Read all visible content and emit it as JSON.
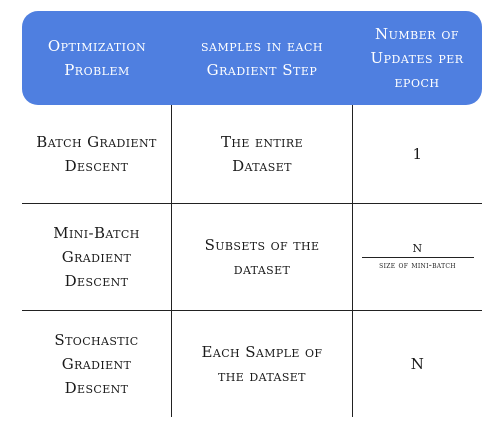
{
  "headers": [
    "Optimization\nProblem",
    "samples in each\nGradient Step",
    "Number of\nUpdates per\nepoch"
  ],
  "rows": [
    {
      "method": "Batch Gradient\nDescent",
      "samples": "The entire\nDataset",
      "updates": "1"
    },
    {
      "method": "Mini-Batch\nGradient\nDescent",
      "samples": "Subsets of the\ndataset",
      "updates_numerator": "N",
      "updates_denominator": "size of mini-batch"
    },
    {
      "method": "Stochastic\nGradient\nDescent",
      "samples": "Each Sample of\nthe dataset",
      "updates": "N"
    }
  ],
  "colors": {
    "header_bg": "#4f7fe0",
    "header_text": "#ffffff",
    "grid": "#222222"
  }
}
